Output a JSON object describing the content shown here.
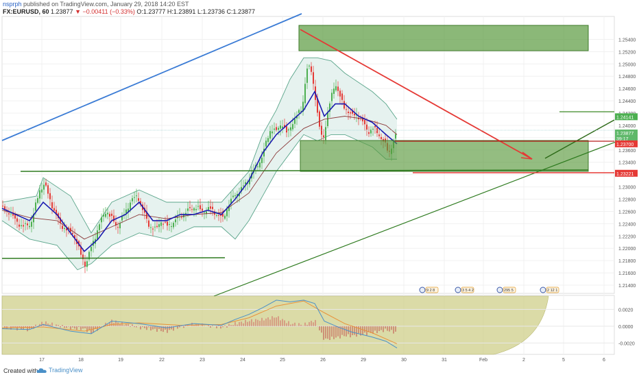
{
  "header": {
    "author": "nsprph",
    "published": " published on TradingView.com, January 29, 2018 14:20 EST",
    "symbol": "FX:EURUSD, 60",
    "last": " 1.23877 ",
    "change": "▼ −0.00411 (−0.33%)",
    "ohlc": " O:1.23777 H:1.23891 L:1.23736 C:1.23877"
  },
  "footer": {
    "created": "Created with",
    "brand": "TradingView"
  },
  "colors": {
    "up": "#4caf50",
    "down": "#e53935",
    "band": "#b9d9cf",
    "band_fill": "#e6f2ef",
    "ma_fast": "#1a1ab0",
    "ma_slow": "#8b3a3a",
    "box": "#6aaa4e",
    "trend_blue": "#3a7bd5",
    "trend_red": "#e53935",
    "green_line": "#2d7a1e",
    "macd_fill": "#cfcf8a",
    "macd_line": "#4a90c8",
    "signal_line": "#e8923a"
  },
  "chart_data": {
    "type": "candlestick",
    "symbol": "FX:EURUSD",
    "timeframe": "60",
    "ylim": [
      1.213,
      1.2555
    ],
    "y_ticks": [
      "1.25400",
      "1.25200",
      "1.25000",
      "1.24800",
      "1.24600",
      "1.24400",
      "1.24200",
      "1.24000",
      "1.23800",
      "1.23600",
      "1.23400",
      "1.23200",
      "1.23000",
      "1.22800",
      "1.22600",
      "1.22400",
      "1.22200",
      "1.22000",
      "1.21800",
      "1.21600",
      "1.21400"
    ],
    "x_ticks": [
      "17",
      "18",
      "19",
      "22",
      "23",
      "24",
      "25",
      "26",
      "29",
      "30",
      "31",
      "Feb",
      "2",
      "5",
      "6"
    ],
    "path_points": [
      [
        0,
        1.2265
      ],
      [
        10,
        1.226
      ],
      [
        20,
        1.2245
      ],
      [
        30,
        1.2235
      ],
      [
        42,
        1.224
      ],
      [
        55,
        1.2295
      ],
      [
        62,
        1.2305
      ],
      [
        68,
        1.2285
      ],
      [
        78,
        1.2255
      ],
      [
        86,
        1.2238
      ],
      [
        94,
        1.223
      ],
      [
        104,
        1.2225
      ],
      [
        114,
        1.2192
      ],
      [
        122,
        1.2172
      ],
      [
        128,
        1.2195
      ],
      [
        136,
        1.222
      ],
      [
        144,
        1.2245
      ],
      [
        152,
        1.2262
      ],
      [
        160,
        1.2248
      ],
      [
        168,
        1.2235
      ],
      [
        178,
        1.2255
      ],
      [
        188,
        1.2278
      ],
      [
        198,
        1.2285
      ],
      [
        206,
        1.226
      ],
      [
        214,
        1.2238
      ],
      [
        224,
        1.223
      ],
      [
        232,
        1.2245
      ],
      [
        242,
        1.2235
      ],
      [
        252,
        1.2245
      ],
      [
        262,
        1.2255
      ],
      [
        272,
        1.2262
      ],
      [
        282,
        1.2268
      ],
      [
        292,
        1.226
      ],
      [
        302,
        1.2265
      ],
      [
        314,
        1.2255
      ],
      [
        322,
        1.2248
      ],
      [
        330,
        1.227
      ],
      [
        338,
        1.2285
      ],
      [
        348,
        1.2295
      ],
      [
        358,
        1.231
      ],
      [
        368,
        1.2328
      ],
      [
        378,
        1.2345
      ],
      [
        386,
        1.2375
      ],
      [
        392,
        1.2395
      ],
      [
        400,
        1.239
      ],
      [
        408,
        1.2405
      ],
      [
        416,
        1.2385
      ],
      [
        422,
        1.2402
      ],
      [
        430,
        1.2415
      ],
      [
        438,
        1.243
      ],
      [
        444,
        1.249
      ],
      [
        450,
        1.2495
      ],
      [
        456,
        1.2455
      ],
      [
        462,
        1.24
      ],
      [
        468,
        1.2375
      ],
      [
        474,
        1.2415
      ],
      [
        480,
        1.2445
      ],
      [
        486,
        1.247
      ],
      [
        492,
        1.245
      ],
      [
        498,
        1.243
      ],
      [
        504,
        1.2425
      ],
      [
        510,
        1.2415
      ],
      [
        518,
        1.2418
      ],
      [
        526,
        1.2405
      ],
      [
        534,
        1.239
      ],
      [
        542,
        1.2395
      ],
      [
        550,
        1.2385
      ],
      [
        558,
        1.237
      ],
      [
        564,
        1.2355
      ],
      [
        570,
        1.2372
      ],
      [
        576,
        1.2388
      ]
    ],
    "bands": {
      "upper": [
        [
          0,
          1.2275
        ],
        [
          50,
          1.2285
        ],
        [
          60,
          1.2315
        ],
        [
          100,
          1.2285
        ],
        [
          130,
          1.2225
        ],
        [
          160,
          1.2275
        ],
        [
          200,
          1.2295
        ],
        [
          240,
          1.2275
        ],
        [
          280,
          1.2275
        ],
        [
          320,
          1.2275
        ],
        [
          360,
          1.2325
        ],
        [
          380,
          1.2385
        ],
        [
          400,
          1.2425
        ],
        [
          420,
          1.2475
        ],
        [
          440,
          1.251
        ],
        [
          460,
          1.251
        ],
        [
          480,
          1.2505
        ],
        [
          500,
          1.2485
        ],
        [
          520,
          1.247
        ],
        [
          540,
          1.2455
        ],
        [
          560,
          1.2435
        ],
        [
          576,
          1.241
        ]
      ],
      "lower": [
        [
          0,
          1.2245
        ],
        [
          40,
          1.2215
        ],
        [
          80,
          1.2205
        ],
        [
          110,
          1.2165
        ],
        [
          130,
          1.2175
        ],
        [
          160,
          1.2205
        ],
        [
          200,
          1.2225
        ],
        [
          240,
          1.2215
        ],
        [
          280,
          1.2235
        ],
        [
          320,
          1.2235
        ],
        [
          340,
          1.2215
        ],
        [
          360,
          1.2245
        ],
        [
          380,
          1.2285
        ],
        [
          400,
          1.2325
        ],
        [
          420,
          1.2355
        ],
        [
          440,
          1.2385
        ],
        [
          460,
          1.2375
        ],
        [
          480,
          1.2385
        ],
        [
          500,
          1.2385
        ],
        [
          520,
          1.2375
        ],
        [
          540,
          1.2365
        ],
        [
          560,
          1.2345
        ],
        [
          576,
          1.2345
        ]
      ],
      "ma_fast": [
        [
          0,
          1.2265
        ],
        [
          20,
          1.2255
        ],
        [
          40,
          1.2245
        ],
        [
          60,
          1.2275
        ],
        [
          80,
          1.2255
        ],
        [
          100,
          1.2225
        ],
        [
          120,
          1.2195
        ],
        [
          140,
          1.2215
        ],
        [
          160,
          1.2245
        ],
        [
          180,
          1.2255
        ],
        [
          200,
          1.2275
        ],
        [
          220,
          1.2245
        ],
        [
          240,
          1.2245
        ],
        [
          260,
          1.2255
        ],
        [
          280,
          1.2255
        ],
        [
          300,
          1.2262
        ],
        [
          320,
          1.2255
        ],
        [
          340,
          1.228
        ],
        [
          360,
          1.231
        ],
        [
          380,
          1.2355
        ],
        [
          400,
          1.2385
        ],
        [
          420,
          1.2405
        ],
        [
          440,
          1.2425
        ],
        [
          456,
          1.2455
        ],
        [
          470,
          1.2415
        ],
        [
          486,
          1.2435
        ],
        [
          500,
          1.2435
        ],
        [
          520,
          1.2415
        ],
        [
          540,
          1.2405
        ],
        [
          560,
          1.2385
        ],
        [
          576,
          1.237
        ]
      ],
      "ma_slow": [
        [
          0,
          1.2262
        ],
        [
          40,
          1.225
        ],
        [
          80,
          1.2245
        ],
        [
          120,
          1.2215
        ],
        [
          160,
          1.2235
        ],
        [
          200,
          1.2255
        ],
        [
          240,
          1.2248
        ],
        [
          280,
          1.2255
        ],
        [
          320,
          1.2258
        ],
        [
          360,
          1.229
        ],
        [
          400,
          1.2355
        ],
        [
          440,
          1.2395
        ],
        [
          470,
          1.241
        ],
        [
          500,
          1.2415
        ],
        [
          530,
          1.241
        ],
        [
          560,
          1.24
        ],
        [
          576,
          1.2385
        ]
      ]
    },
    "price_labels": [
      {
        "text": "1.24141",
        "value": 1.24141,
        "color": "#4caf50"
      },
      {
        "text": "1.23877",
        "value": 1.23877,
        "color": "#5fb86a"
      },
      {
        "text": "39:17",
        "value": 1.2379,
        "color": "#5fb86a"
      },
      {
        "text": "1.23700",
        "value": 1.237,
        "color": "#e53935"
      },
      {
        "text": "1.23221",
        "value": 1.23221,
        "color": "#e53935"
      }
    ],
    "macd": {
      "ylim": [
        -0.0032,
        0.0035
      ],
      "y_ticks": [
        "0.0020",
        "0.0000",
        "-0.0020"
      ],
      "macd_line": [
        [
          0,
          -0.0003
        ],
        [
          40,
          -0.0004
        ],
        [
          60,
          0.0002
        ],
        [
          100,
          -0.0006
        ],
        [
          130,
          -0.0009
        ],
        [
          160,
          0.0006
        ],
        [
          200,
          0.0003
        ],
        [
          240,
          -0.0002
        ],
        [
          280,
          0.0003
        ],
        [
          320,
          0.0001
        ],
        [
          340,
          0.0008
        ],
        [
          360,
          0.0014
        ],
        [
          380,
          0.0022
        ],
        [
          400,
          0.0031
        ],
        [
          420,
          0.0029
        ],
        [
          440,
          0.0031
        ],
        [
          456,
          0.0027
        ],
        [
          470,
          0.0006
        ],
        [
          490,
          -0.0001
        ],
        [
          510,
          -0.0007
        ],
        [
          540,
          -0.0013
        ],
        [
          560,
          -0.0018
        ],
        [
          576,
          -0.0026
        ]
      ],
      "signal_line": [
        [
          0,
          -0.0002
        ],
        [
          60,
          -0.0001
        ],
        [
          120,
          -0.0006
        ],
        [
          160,
          0.0002
        ],
        [
          200,
          0.0004
        ],
        [
          260,
          0.0001
        ],
        [
          320,
          0.0002
        ],
        [
          360,
          0.001
        ],
        [
          400,
          0.0024
        ],
        [
          440,
          0.003
        ],
        [
          470,
          0.0016
        ],
        [
          500,
          0.0003
        ],
        [
          540,
          -0.0008
        ],
        [
          576,
          -0.0021
        ]
      ]
    },
    "event_icons": [
      {
        "label": "9 2 8"
      },
      {
        "label": "3 5 4 2"
      },
      {
        "label": "295 5"
      },
      {
        "label": "2 12 1"
      }
    ]
  }
}
